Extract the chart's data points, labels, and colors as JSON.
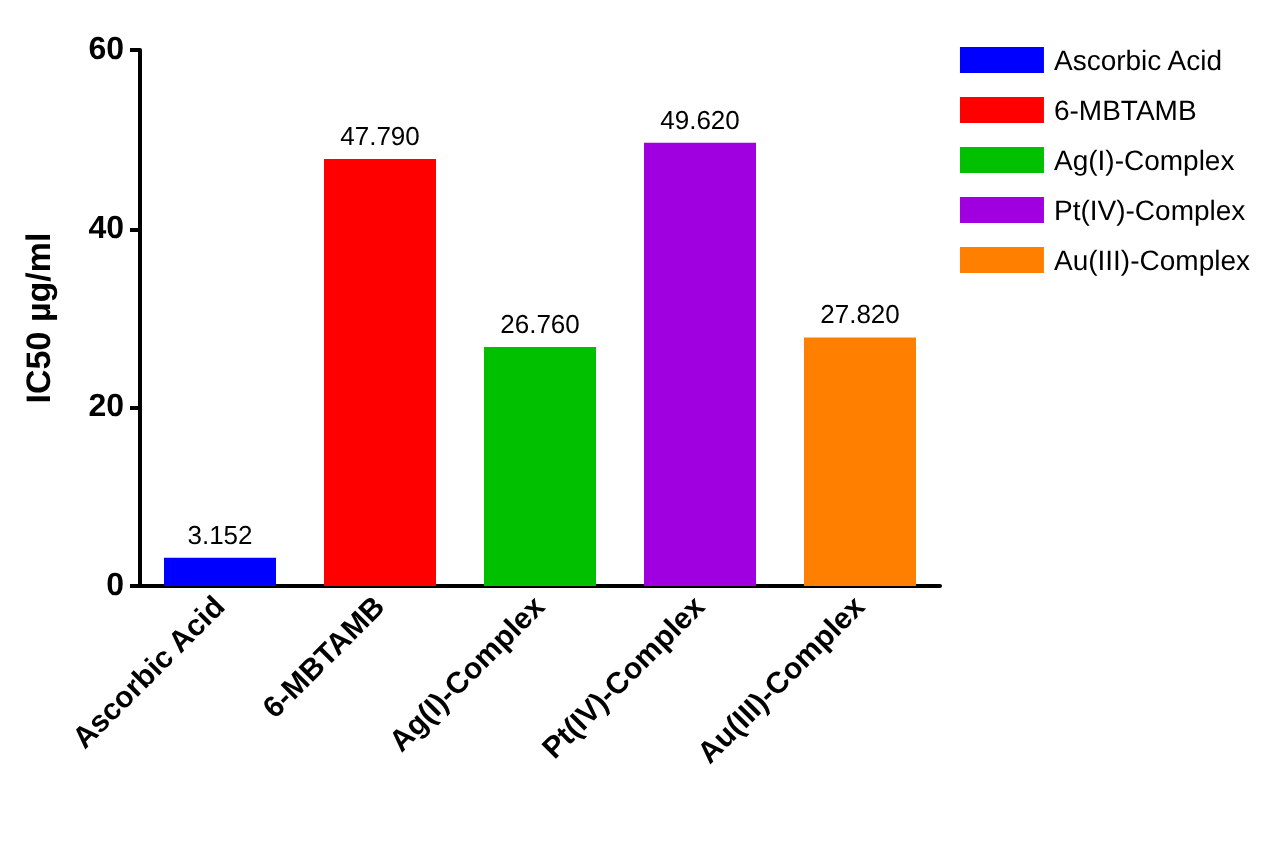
{
  "chart_data": {
    "type": "bar",
    "ylabel": "IC50 µg/ml",
    "categories": [
      "Ascorbic Acid",
      "6-MBTAMB",
      "Ag(I)-Complex",
      "Pt(IV)-Complex",
      "Au(III)-Complex"
    ],
    "series": [
      {
        "name": "Ascorbic Acid",
        "color": "#0000ff",
        "values": [
          3.152,
          null,
          null,
          null,
          null
        ],
        "value_labels": [
          "3.152",
          null,
          null,
          null,
          null
        ]
      },
      {
        "name": "6-MBTAMB",
        "color": "#ff0000",
        "values": [
          null,
          47.79,
          null,
          null,
          null
        ],
        "value_labels": [
          null,
          "47.790",
          null,
          null,
          null
        ]
      },
      {
        "name": "Ag(I)-Complex",
        "color": "#00c000",
        "values": [
          null,
          null,
          26.76,
          null,
          null
        ],
        "value_labels": [
          null,
          null,
          "26.760",
          null,
          null
        ]
      },
      {
        "name": "Pt(IV)-Complex",
        "color": "#a000e0",
        "values": [
          null,
          null,
          null,
          49.62,
          null
        ],
        "value_labels": [
          null,
          null,
          null,
          "49.620",
          null
        ]
      },
      {
        "name": "Au(III)-Complex",
        "color": "#ff8000",
        "values": [
          null,
          null,
          null,
          null,
          27.82
        ],
        "value_labels": [
          null,
          null,
          null,
          null,
          "27.820"
        ]
      }
    ],
    "stacked": true,
    "ylim": [
      0,
      60
    ],
    "yticks": [
      0,
      20,
      40,
      60
    ],
    "grid": false,
    "legend": "top right"
  }
}
